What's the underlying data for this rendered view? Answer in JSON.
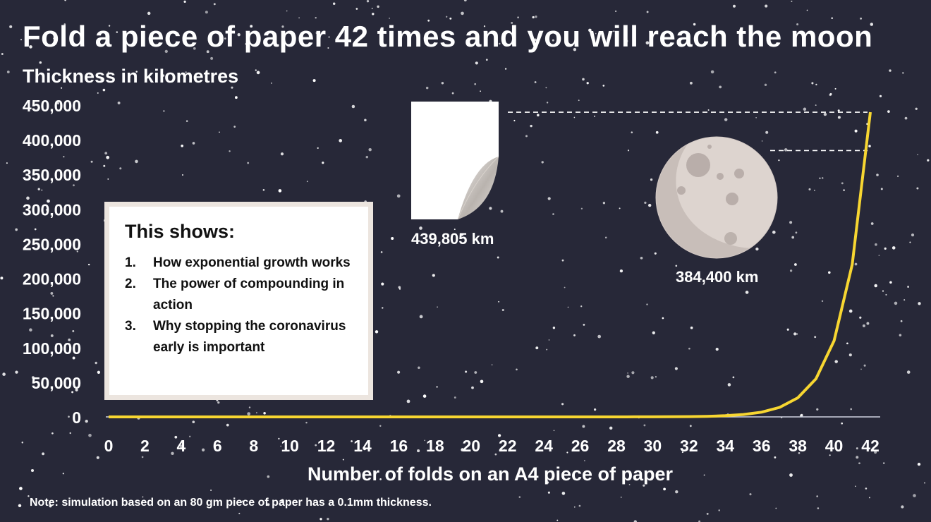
{
  "title": "Fold a piece of paper 42 times and you will reach the moon",
  "note": "Note: simulation based on an 80 gm piece of paper has a 0.1mm thickness.",
  "colors": {
    "background": "#272838",
    "line": "#f7d631",
    "text": "#ffffff",
    "box_border": "#ece5df"
  },
  "info_box": {
    "title": "This shows:",
    "items": [
      {
        "num": "1.",
        "text": "How exponential growth works"
      },
      {
        "num": "2.",
        "text": "The power of compounding in action"
      },
      {
        "num": "3.",
        "text": "Why stopping the coronavirus early is important"
      }
    ]
  },
  "paper": {
    "icon": "paper-sheet-icon",
    "label": "439,805 km"
  },
  "moon": {
    "icon": "moon-icon",
    "label": "384,400 km"
  },
  "chart_data": {
    "type": "line",
    "title": "Fold a piece of paper 42 times and you will reach the moon",
    "xlabel": "Number of folds on an A4 piece of paper",
    "ylabel": "Thickness in kilometres",
    "xlim": [
      0,
      42
    ],
    "ylim": [
      0,
      450000
    ],
    "x_ticks": [
      0,
      2,
      4,
      6,
      8,
      10,
      12,
      14,
      16,
      18,
      20,
      22,
      24,
      26,
      28,
      30,
      32,
      34,
      36,
      38,
      40,
      42
    ],
    "y_ticks": [
      0,
      50000,
      100000,
      150000,
      200000,
      250000,
      300000,
      350000,
      400000,
      450000
    ],
    "y_tick_labels": [
      "0",
      "50,000",
      "100,000",
      "150,000",
      "200,000",
      "250,000",
      "300,000",
      "350,000",
      "400,000",
      "450,000"
    ],
    "grid": false,
    "series": [
      {
        "x": [
          0,
          1,
          2,
          3,
          4,
          5,
          6,
          7,
          8,
          9,
          10,
          11,
          12,
          13,
          14,
          15,
          16,
          17,
          18,
          19,
          20,
          21,
          22,
          23,
          24,
          25,
          26,
          27,
          28,
          29,
          30,
          31,
          32,
          33,
          34,
          35,
          36,
          37,
          38,
          39,
          40,
          41,
          42
        ],
        "values": [
          0,
          0,
          0,
          0,
          0,
          0,
          0,
          0,
          0,
          0,
          0,
          0,
          0,
          0,
          0,
          0,
          0,
          0,
          0,
          0,
          0,
          0,
          0,
          0,
          2,
          3,
          7,
          13,
          27,
          54,
          107,
          215,
          429,
          859,
          1718,
          3436,
          6872,
          13744,
          27488,
          54976,
          109951,
          219902,
          439805
        ]
      }
    ],
    "reference_lines": [
      {
        "label": "439,805 km",
        "value": 439805
      },
      {
        "label": "384,400 km",
        "value": 384400
      }
    ]
  }
}
